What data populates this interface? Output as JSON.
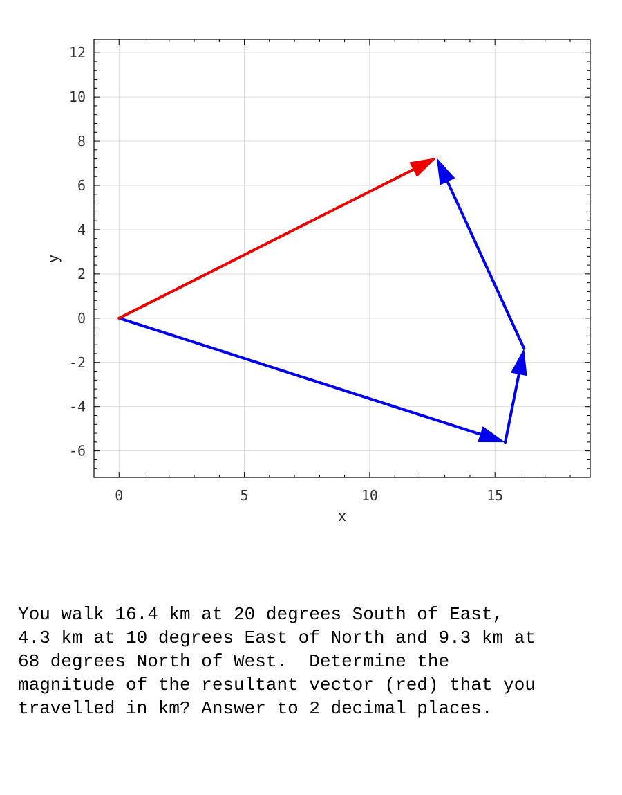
{
  "chart_data": {
    "type": "vector_diagram",
    "xlabel": "x",
    "ylabel": "y",
    "xlim": [
      -1,
      18.8
    ],
    "ylim": [
      -7.2,
      12.6
    ],
    "x_ticks": [
      0,
      5,
      10,
      15
    ],
    "y_ticks": [
      -6,
      -4,
      -2,
      0,
      2,
      4,
      6,
      8,
      10,
      12
    ],
    "grid": true,
    "vectors": [
      {
        "from": [
          0,
          0
        ],
        "to": [
          15.41,
          -5.61
        ],
        "color": "#0000ee"
      },
      {
        "from": [
          15.41,
          -5.61
        ],
        "to": [
          16.16,
          -1.37
        ],
        "color": "#0000ee"
      },
      {
        "from": [
          16.16,
          -1.37
        ],
        "to": [
          12.67,
          7.25
        ],
        "color": "#0000ee"
      },
      {
        "from": [
          0,
          0
        ],
        "to": [
          12.67,
          7.25
        ],
        "color": "#ee0000"
      }
    ]
  },
  "problem_text": "You walk 16.4 km at 20 degrees South of East,\n4.3 km at 10 degrees East of North and 9.3 km at\n68 degrees North of West.  Determine the\nmagnitude of the resultant vector (red) that you\ntravelled in km? Answer to 2 decimal places."
}
